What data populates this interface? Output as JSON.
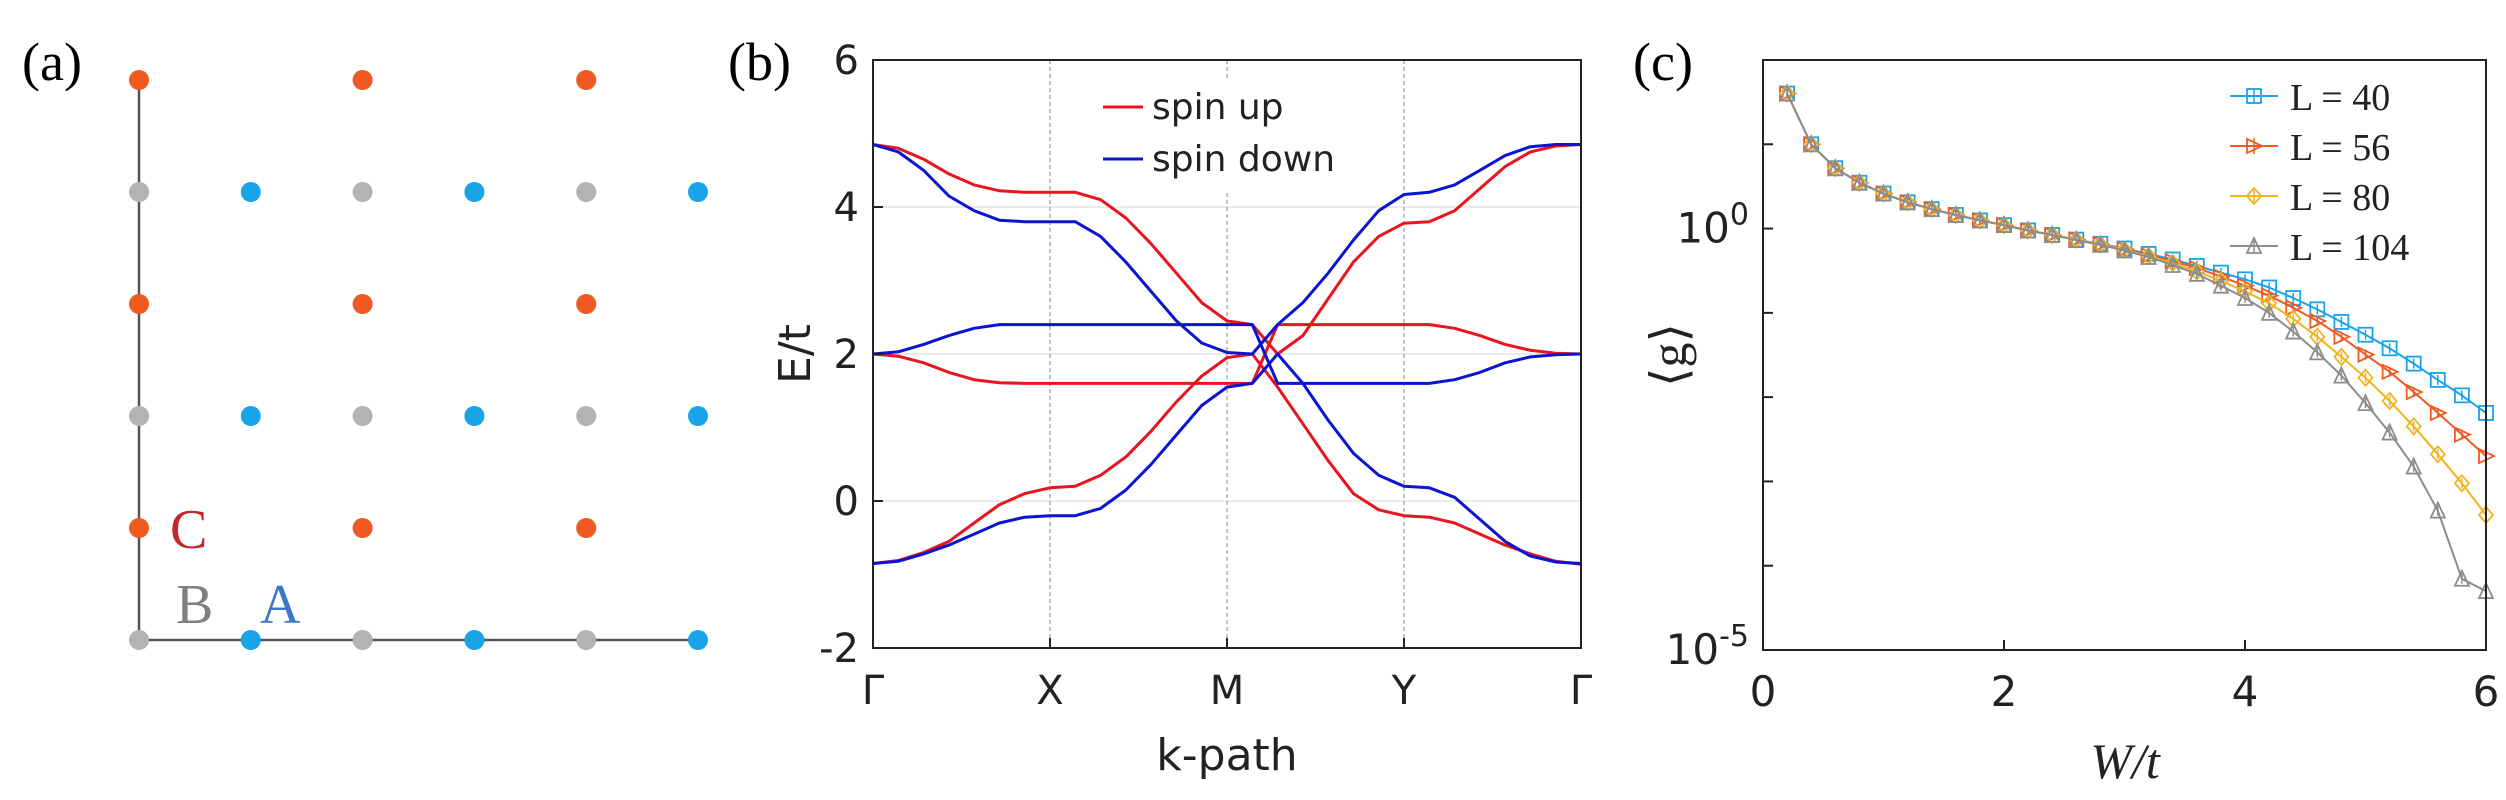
{
  "panels": {
    "a": {
      "label": "(a)"
    },
    "b": {
      "label": "(b)"
    },
    "c": {
      "label": "(c)"
    }
  },
  "lattice": {
    "colors": {
      "A": "#1aa3e8",
      "B": "#b3b3b3",
      "C": "#f05a22",
      "axis": "#555555"
    },
    "label_colors": {
      "A": "#3c78c8",
      "B": "#808080",
      "C": "#c0282d"
    },
    "labels": {
      "A": "A",
      "B": "B",
      "C": "C"
    },
    "rows": [
      [
        "C",
        "",
        "C",
        "",
        "C",
        ""
      ],
      [
        "B",
        "A",
        "B",
        "A",
        "B",
        "A"
      ],
      [
        "C",
        "",
        "C",
        "",
        "C",
        ""
      ],
      [
        "B",
        "A",
        "B",
        "A",
        "B",
        "A"
      ],
      [
        "C",
        "",
        "C",
        "",
        "C",
        ""
      ],
      [
        "B",
        "A",
        "B",
        "A",
        "B",
        "A"
      ]
    ]
  },
  "chart_data": [
    {
      "type": "line",
      "panel": "b",
      "xlabel": "k-path",
      "ylabel": "E/t",
      "ylim": [
        -2,
        6
      ],
      "yticks": [
        -2,
        0,
        2,
        4,
        6
      ],
      "xtick_labels": [
        "Γ",
        "X",
        "M",
        "Y",
        "Γ"
      ],
      "grid": true,
      "legend_position": "top-center",
      "series": [
        {
          "name": "spin up",
          "color": "#e8141e",
          "bands": [
            [
              -0.85,
              -0.81,
              -0.7,
              -0.55,
              -0.3,
              -0.05,
              0.1,
              0.18,
              0.2,
              0.35,
              0.6,
              0.95,
              1.35,
              1.7,
              1.95,
              2.0,
              1.55,
              1.05,
              0.55,
              0.1,
              -0.12,
              -0.2,
              -0.22,
              -0.3,
              -0.45,
              -0.6,
              -0.72,
              -0.82,
              -0.86
            ],
            [
              2.0,
              1.97,
              1.88,
              1.75,
              1.65,
              1.61,
              1.6,
              1.6,
              1.6,
              1.6,
              1.6,
              1.6,
              1.6,
              1.6,
              1.6,
              1.6,
              2.4,
              2.4,
              2.4,
              2.4,
              2.4,
              2.4,
              2.4,
              2.35,
              2.25,
              2.13,
              2.05,
              2.01,
              2.0
            ],
            [
              4.85,
              4.8,
              4.65,
              4.45,
              4.3,
              4.22,
              4.2,
              4.2,
              4.2,
              4.1,
              3.85,
              3.5,
              3.1,
              2.7,
              2.45,
              2.4,
              2.0,
              2.25,
              2.75,
              3.25,
              3.6,
              3.78,
              3.8,
              3.95,
              4.25,
              4.55,
              4.75,
              4.83,
              4.85
            ]
          ]
        },
        {
          "name": "spin down",
          "color": "#0a14d2",
          "bands": [
            [
              -0.85,
              -0.82,
              -0.72,
              -0.6,
              -0.45,
              -0.3,
              -0.22,
              -0.2,
              -0.2,
              -0.1,
              0.15,
              0.5,
              0.9,
              1.3,
              1.55,
              1.6,
              2.0,
              1.6,
              1.1,
              0.65,
              0.35,
              0.2,
              0.18,
              0.05,
              -0.25,
              -0.55,
              -0.75,
              -0.83,
              -0.85
            ],
            [
              2.0,
              2.03,
              2.13,
              2.25,
              2.35,
              2.4,
              2.4,
              2.4,
              2.4,
              2.4,
              2.4,
              2.4,
              2.4,
              2.4,
              2.4,
              2.4,
              1.6,
              1.6,
              1.6,
              1.6,
              1.6,
              1.6,
              1.6,
              1.65,
              1.75,
              1.88,
              1.96,
              1.99,
              2.0
            ],
            [
              4.85,
              4.75,
              4.5,
              4.15,
              3.95,
              3.82,
              3.8,
              3.8,
              3.8,
              3.6,
              3.25,
              2.85,
              2.45,
              2.15,
              2.02,
              2.0,
              2.4,
              2.7,
              3.1,
              3.55,
              3.95,
              4.17,
              4.2,
              4.3,
              4.5,
              4.7,
              4.82,
              4.85,
              4.85
            ]
          ]
        }
      ]
    },
    {
      "type": "line",
      "panel": "c",
      "xlabel": "W/t",
      "ylabel": "⟨g⟩",
      "xlim": [
        0,
        6
      ],
      "xticks": [
        0,
        2,
        4,
        6
      ],
      "ylim": [
        1e-05,
        100
      ],
      "yscale": "log",
      "yticks": [
        {
          "value": 1,
          "base": "10",
          "exp": "0"
        },
        {
          "value": 1e-05,
          "base": "10",
          "exp": "-5"
        }
      ],
      "legend_position": "top-right",
      "x": [
        0.2,
        0.4,
        0.6,
        0.8,
        1.0,
        1.2,
        1.4,
        1.6,
        1.8,
        2.0,
        2.2,
        2.4,
        2.6,
        2.8,
        3.0,
        3.2,
        3.4,
        3.6,
        3.8,
        4.0,
        4.2,
        4.4,
        4.6,
        4.8,
        5.0,
        5.2,
        5.4,
        5.6,
        5.8,
        6.0
      ],
      "series": [
        {
          "name": "L = 40",
          "L": "40",
          "color": "#1aa3e8",
          "marker": "square",
          "values": [
            40,
            10,
            5.2,
            3.5,
            2.6,
            2.05,
            1.7,
            1.45,
            1.25,
            1.1,
            0.95,
            0.84,
            0.74,
            0.66,
            0.58,
            0.5,
            0.43,
            0.36,
            0.3,
            0.25,
            0.2,
            0.15,
            0.11,
            0.078,
            0.055,
            0.038,
            0.025,
            0.016,
            0.0105,
            0.0065
          ]
        },
        {
          "name": "L = 56",
          "L": "56",
          "color": "#f05a22",
          "marker": "triangle-right",
          "values": [
            40,
            10,
            5.2,
            3.5,
            2.6,
            2.05,
            1.7,
            1.45,
            1.25,
            1.1,
            0.95,
            0.84,
            0.74,
            0.65,
            0.57,
            0.48,
            0.41,
            0.34,
            0.27,
            0.21,
            0.16,
            0.115,
            0.08,
            0.052,
            0.032,
            0.02,
            0.0115,
            0.0065,
            0.0036,
            0.002
          ]
        },
        {
          "name": "L = 80",
          "L": "80",
          "color": "#f0b41e",
          "marker": "diamond",
          "values": [
            40,
            10,
            5.2,
            3.5,
            2.6,
            2.05,
            1.7,
            1.45,
            1.25,
            1.1,
            0.95,
            0.84,
            0.74,
            0.65,
            0.56,
            0.47,
            0.39,
            0.31,
            0.24,
            0.18,
            0.13,
            0.085,
            0.052,
            0.03,
            0.017,
            0.009,
            0.0045,
            0.0021,
            0.00095,
            0.0004
          ]
        },
        {
          "name": "L = 104",
          "L": "104",
          "color": "#8c8c8c",
          "marker": "triangle-up",
          "values": [
            40,
            10,
            5.2,
            3.5,
            2.6,
            2.05,
            1.7,
            1.45,
            1.25,
            1.1,
            0.95,
            0.84,
            0.73,
            0.64,
            0.55,
            0.46,
            0.37,
            0.29,
            0.21,
            0.15,
            0.1,
            0.06,
            0.034,
            0.018,
            0.0085,
            0.0038,
            0.0015,
            0.00045,
            7e-05,
            5e-05
          ]
        }
      ]
    }
  ]
}
